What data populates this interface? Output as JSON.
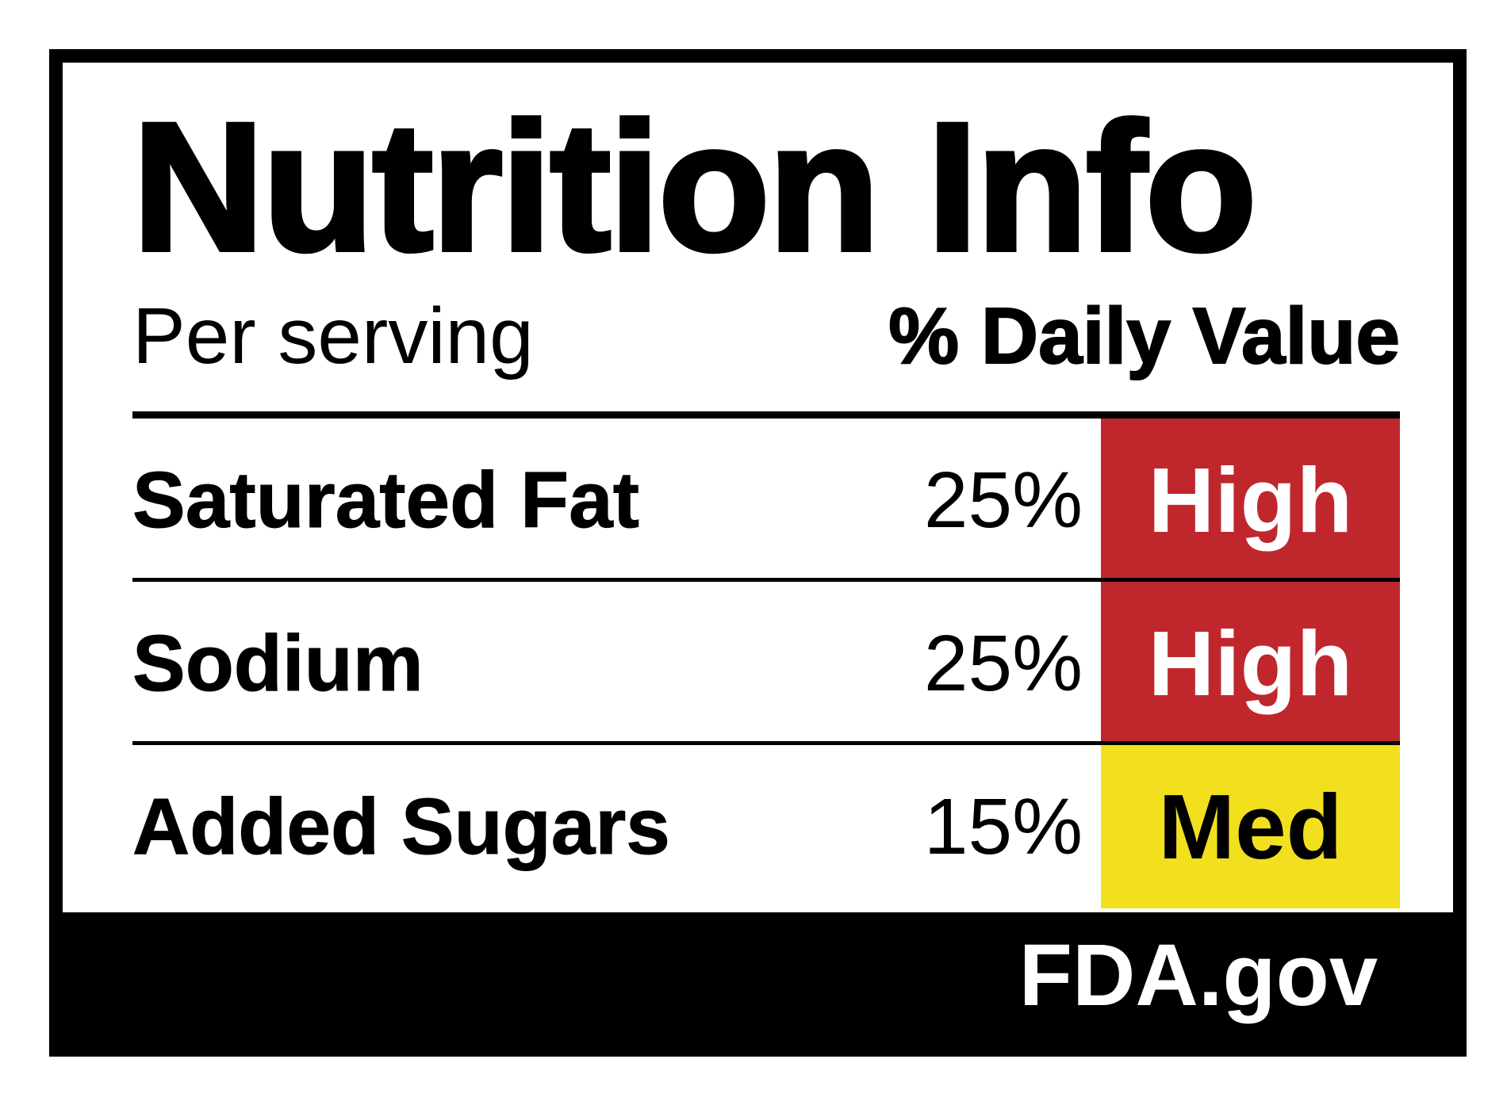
{
  "label": {
    "title": "Nutrition Info",
    "per_serving": "Per serving",
    "daily_value_header": "% Daily Value",
    "rows": [
      {
        "name": "Saturated Fat",
        "percent": "25%",
        "level": "High"
      },
      {
        "name": "Sodium",
        "percent": "25%",
        "level": "High"
      },
      {
        "name": "Added Sugars",
        "percent": "15%",
        "level": "Med"
      }
    ],
    "footer": "FDA.gov"
  },
  "colors": {
    "high": "#c0272d",
    "med": "#f2e01f",
    "high_text": "#ffffff",
    "med_text": "#000000",
    "border": "#000000"
  }
}
